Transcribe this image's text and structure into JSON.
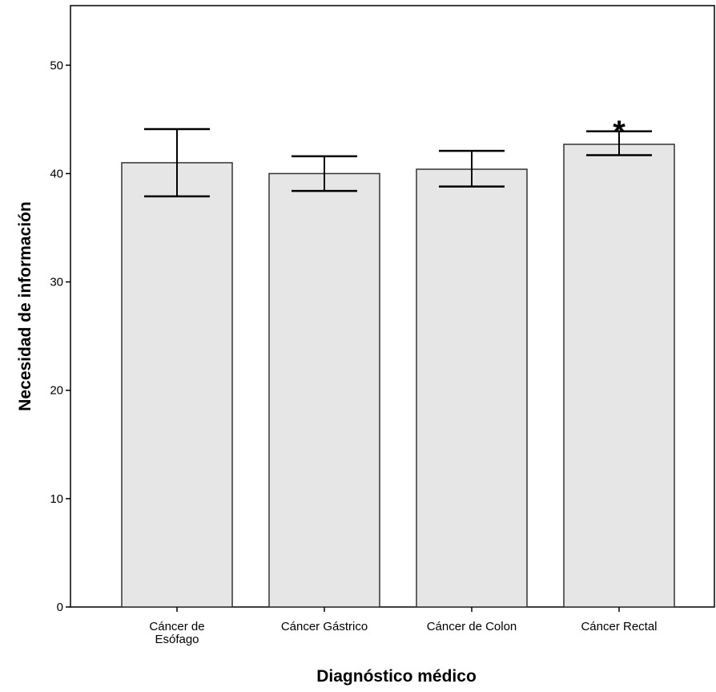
{
  "chart_data": {
    "type": "bar",
    "title": "",
    "xlabel": "Diagnóstico médico",
    "ylabel": "Necesidad de información",
    "categories": [
      [
        "Cáncer de",
        "Esófago"
      ],
      [
        "Cáncer Gástrico"
      ],
      [
        "Cáncer de Colon"
      ],
      [
        "Cáncer Rectal"
      ]
    ],
    "values": [
      41.0,
      40.0,
      40.4,
      42.7
    ],
    "error_low": [
      37.9,
      38.4,
      38.8,
      41.7
    ],
    "error_high": [
      44.1,
      41.6,
      42.1,
      43.9
    ],
    "annotations": [
      {
        "category_index": 3,
        "text": "*"
      }
    ],
    "yticks": [
      0,
      10,
      20,
      30,
      40,
      50
    ],
    "ylim": [
      0,
      55.5
    ],
    "grid": false,
    "legend": "none",
    "bar_color": "#e6e6e6",
    "edge_color": "#333333",
    "error_color": "#000000"
  }
}
